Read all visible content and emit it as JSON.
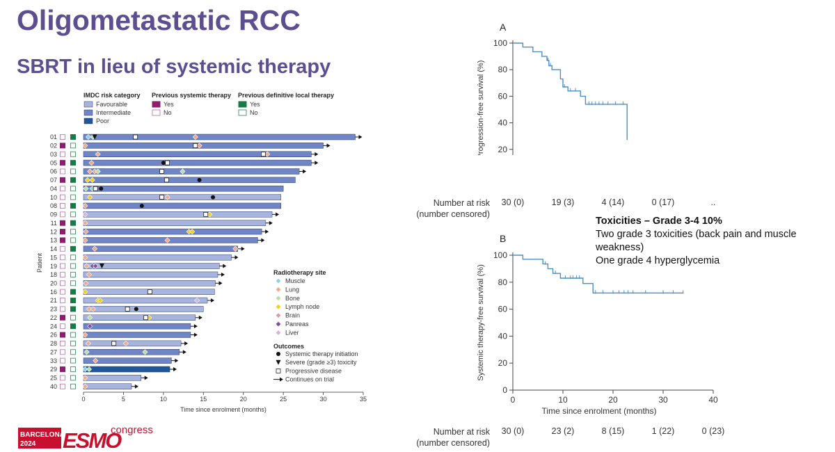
{
  "slide": {
    "title": "Oligometastatic RCC",
    "subtitle": "SBRT in lieu of systemic therapy"
  },
  "toxicities": {
    "heading": "Toxicities – Grade 3-4 10%",
    "line1": "Two grade 3 toxicities (back  pain and muscle weakness)",
    "line2": "One grade 4 hyperglycemia"
  },
  "logo": {
    "city": "BARCELONA",
    "year": "2024",
    "brand": "ESMO",
    "word": "congress"
  },
  "colors": {
    "favourable": "#a7b4de",
    "intermediate": "#6f85c6",
    "poor": "#1f5799",
    "yes_systemic": "#8c1d6f",
    "no_systemic": "#c986bd",
    "yes_local": "#1a7a47",
    "no_local": "#4f9d6d",
    "muscle": "#8fd0e8",
    "lung": "#f2a98a",
    "bone": "#b9dfa2",
    "lymph": "#f3d016",
    "brain": "#e59a9a",
    "panreas": "#7b4f9e",
    "liver": "#d5b5d8",
    "km_line": "#4a8fc7",
    "title": "#5d4f8f"
  },
  "chart_data": [
    {
      "type": "swimmer",
      "xlabel": "Time since enrolment (months)",
      "ylabel": "Patient",
      "xlim": [
        0,
        35
      ],
      "xticks": [
        0,
        5,
        10,
        15,
        20,
        25,
        30,
        35
      ],
      "legend": {
        "risk_title": "IMDC risk category",
        "risk": [
          "Favourable",
          "Intermediate",
          "Poor"
        ],
        "systemic_title": "Previous systemic therapy",
        "systemic": [
          "Yes",
          "No"
        ],
        "local_title": "Previous definitive local therapy",
        "local": [
          "Yes",
          "No"
        ],
        "site_title": "Radiotherapy site",
        "sites": [
          "Muscle",
          "Lung",
          "Bone",
          "Lymph node",
          "Brain",
          "Panreas",
          "Liver"
        ],
        "outcome_title": "Outcomes",
        "outcomes": [
          "Systemic therapy initiation",
          "Severe (grade ≥3) toxicity",
          "Progressive disease",
          "Continues on trial"
        ]
      },
      "patients": [
        {
          "id": "01",
          "sys": false,
          "loc": true,
          "risk": "intermediate",
          "end": 34,
          "cont": true,
          "sites": [
            [
              0.6,
              "muscle"
            ],
            [
              1.2,
              "bone"
            ],
            [
              14,
              "lung"
            ]
          ],
          "pd": 6.5,
          "tox": 1.4
        },
        {
          "id": "02",
          "sys": true,
          "loc": false,
          "risk": "intermediate",
          "end": 30,
          "cont": true,
          "sites": [
            [
              0.2,
              "lung"
            ],
            [
              14.5,
              "lung"
            ]
          ],
          "pd": 14
        },
        {
          "id": "03",
          "sys": false,
          "loc": false,
          "risk": "intermediate",
          "end": 28.5,
          "cont": true,
          "sites": [
            [
              1.8,
              "lung"
            ],
            [
              23,
              "lung"
            ]
          ],
          "pd": 22.5
        },
        {
          "id": "05",
          "sys": true,
          "loc": true,
          "risk": "intermediate",
          "end": 28.5,
          "cont": true,
          "sites": [
            [
              1,
              "lung"
            ]
          ],
          "st": 10,
          "pd": 10.5
        },
        {
          "id": "06",
          "sys": false,
          "loc": false,
          "risk": "intermediate",
          "end": 27,
          "cont": true,
          "sites": [
            [
              0.8,
              "lung"
            ],
            [
              1.4,
              "lung"
            ],
            [
              1.8,
              "bone"
            ],
            [
              12.4,
              "bone"
            ]
          ],
          "pd": 9.8
        },
        {
          "id": "07",
          "sys": true,
          "loc": true,
          "risk": "intermediate",
          "end": 26.5,
          "cont": false,
          "sites": [
            [
              0.5,
              "lymph"
            ],
            [
              1.1,
              "lymph"
            ]
          ],
          "st": 14.5,
          "pd": 10.4
        },
        {
          "id": "04",
          "sys": false,
          "loc": false,
          "risk": "intermediate",
          "end": 25,
          "cont": false,
          "sites": [
            [
              0.3,
              "bone"
            ],
            [
              1.1,
              "muscle"
            ]
          ],
          "pd": 1.5,
          "st": 2.2
        },
        {
          "id": "10",
          "sys": false,
          "loc": false,
          "risk": "favourable",
          "end": 24.7,
          "cont": false,
          "sites": [
            [
              0.8,
              "lymph"
            ],
            [
              10.5,
              "lung"
            ]
          ],
          "pd": 9.8,
          "st": 16.2
        },
        {
          "id": "08",
          "sys": false,
          "loc": true,
          "risk": "intermediate",
          "end": 24.7,
          "cont": false,
          "sites": [
            [
              0.2,
              "lung"
            ]
          ],
          "st": 7.3
        },
        {
          "id": "09",
          "sys": false,
          "loc": false,
          "risk": "favourable",
          "end": 23.6,
          "cont": true,
          "sites": [
            [
              0.2,
              "liver"
            ],
            [
              15.8,
              "lymph"
            ]
          ],
          "pd": 15.3
        },
        {
          "id": "11",
          "sys": true,
          "loc": true,
          "risk": "favourable",
          "end": 22.8,
          "cont": true,
          "sites": [
            [
              0.2,
              "lung"
            ]
          ]
        },
        {
          "id": "12",
          "sys": true,
          "loc": false,
          "risk": "intermediate",
          "end": 22.3,
          "cont": true,
          "sites": [
            [
              0.3,
              "lung"
            ],
            [
              13.2,
              "lymph"
            ],
            [
              13.6,
              "lymph"
            ]
          ]
        },
        {
          "id": "13",
          "sys": true,
          "loc": false,
          "risk": "intermediate",
          "end": 21.8,
          "cont": true,
          "sites": [
            [
              0.2,
              "lung"
            ],
            [
              10.5,
              "lung"
            ]
          ]
        },
        {
          "id": "14",
          "sys": false,
          "loc": true,
          "risk": "intermediate",
          "end": 19.3,
          "cont": true,
          "sites": [
            [
              1.4,
              "lung"
            ],
            [
              19,
              "lung"
            ]
          ]
        },
        {
          "id": "15",
          "sys": false,
          "loc": false,
          "risk": "favourable",
          "end": 18.5,
          "cont": true,
          "sites": [
            [
              0.2,
              "lung"
            ]
          ]
        },
        {
          "id": "19",
          "sys": false,
          "loc": false,
          "risk": "favourable",
          "end": 17,
          "cont": true,
          "sites": [
            [
              0.4,
              "lung"
            ],
            [
              1.1,
              "panreas"
            ],
            [
              1.5,
              "panreas"
            ]
          ],
          "tox": 2.3
        },
        {
          "id": "18",
          "sys": false,
          "loc": false,
          "risk": "favourable",
          "end": 16.8,
          "cont": true,
          "sites": [
            [
              0.7,
              "lung"
            ]
          ]
        },
        {
          "id": "20",
          "sys": false,
          "loc": false,
          "risk": "favourable",
          "end": 16.5,
          "cont": true,
          "sites": [
            [
              0.3,
              "lung"
            ]
          ]
        },
        {
          "id": "16",
          "sys": false,
          "loc": true,
          "risk": "favourable",
          "end": 16.4,
          "cont": false,
          "sites": [
            [
              0.2,
              "lymph"
            ]
          ],
          "pd": 8.3
        },
        {
          "id": "21",
          "sys": false,
          "loc": true,
          "risk": "favourable",
          "end": 15.5,
          "cont": true,
          "sites": [
            [
              1.8,
              "lymph"
            ],
            [
              2.1,
              "lymph"
            ],
            [
              14.2,
              "liver"
            ]
          ]
        },
        {
          "id": "23",
          "sys": false,
          "loc": true,
          "risk": "favourable",
          "end": 15,
          "cont": false,
          "sites": [
            [
              0.7,
              "lung"
            ],
            [
              1.2,
              "lung"
            ]
          ],
          "pd": 5.5,
          "st": 6.6
        },
        {
          "id": "22",
          "sys": true,
          "loc": false,
          "risk": "favourable",
          "end": 14,
          "cont": true,
          "sites": [
            [
              0.8,
              "bone"
            ],
            [
              8.2,
              "lymph"
            ]
          ],
          "pd": 7.8
        },
        {
          "id": "24",
          "sys": false,
          "loc": true,
          "risk": "intermediate",
          "end": 13.4,
          "cont": true,
          "sites": [
            [
              0.8,
              "panreas"
            ]
          ]
        },
        {
          "id": "26",
          "sys": true,
          "loc": false,
          "risk": "intermediate",
          "end": 13.4,
          "cont": true,
          "sites": [
            [
              0.2,
              "lung"
            ]
          ]
        },
        {
          "id": "28",
          "sys": false,
          "loc": false,
          "risk": "favourable",
          "end": 12.2,
          "cont": true,
          "sites": [
            [
              0.6,
              "lung"
            ],
            [
              5.3,
              "lung"
            ]
          ],
          "pd": 3.8
        },
        {
          "id": "27",
          "sys": false,
          "loc": false,
          "risk": "intermediate",
          "end": 12,
          "cont": true,
          "sites": [
            [
              0.4,
              "bone"
            ],
            [
              7.7,
              "bone"
            ]
          ]
        },
        {
          "id": "33",
          "sys": false,
          "loc": false,
          "risk": "intermediate",
          "end": 11,
          "cont": true,
          "sites": [
            [
              1.5,
              "lung"
            ]
          ]
        },
        {
          "id": "29",
          "sys": true,
          "loc": false,
          "risk": "poor",
          "end": 10.8,
          "cont": true,
          "sites": [
            [
              0.2,
              "muscle"
            ],
            [
              0.7,
              "bone"
            ]
          ]
        },
        {
          "id": "25",
          "sys": false,
          "loc": false,
          "risk": "favourable",
          "end": 7.2,
          "cont": true,
          "sites": [
            [
              0.2,
              "lung"
            ]
          ]
        },
        {
          "id": "40",
          "sys": false,
          "loc": false,
          "risk": "favourable",
          "end": 6,
          "cont": true,
          "sites": [
            [
              0.2,
              "lung"
            ]
          ]
        }
      ]
    },
    {
      "type": "line",
      "panel": "A",
      "ylabel": "Progression-free survival (%)",
      "xlim": [
        0,
        40
      ],
      "ylim": [
        0,
        100
      ],
      "xticks": [
        0,
        10,
        20,
        30,
        40
      ],
      "yticks": [
        0,
        20,
        40,
        60,
        80,
        100
      ],
      "steps": [
        [
          0,
          100
        ],
        [
          2,
          100
        ],
        [
          2,
          97
        ],
        [
          4,
          97
        ],
        [
          4,
          93.5
        ],
        [
          5.8,
          93.5
        ],
        [
          5.8,
          90
        ],
        [
          6.8,
          90
        ],
        [
          6.8,
          87
        ],
        [
          7.2,
          87
        ],
        [
          7.2,
          83
        ],
        [
          7.8,
          83
        ],
        [
          7.8,
          80
        ],
        [
          9.5,
          80
        ],
        [
          9.5,
          73
        ],
        [
          10,
          73
        ],
        [
          10,
          67
        ],
        [
          11,
          67
        ],
        [
          11,
          64
        ],
        [
          13.5,
          64
        ],
        [
          13.5,
          60
        ],
        [
          14.5,
          60
        ],
        [
          14.5,
          54
        ],
        [
          22.8,
          54
        ],
        [
          22.8,
          27
        ]
      ],
      "censors": [
        [
          7,
          87
        ],
        [
          7.5,
          83
        ],
        [
          10.3,
          67
        ],
        [
          11.5,
          64
        ],
        [
          12.5,
          64
        ],
        [
          15.2,
          54
        ],
        [
          15.8,
          54
        ],
        [
          16.5,
          54
        ],
        [
          17.2,
          54
        ],
        [
          18,
          54
        ],
        [
          19,
          54
        ],
        [
          20.5,
          54
        ],
        [
          22,
          54
        ]
      ],
      "risk_label": "Number at risk",
      "risk_label2": "(number censored)",
      "risk": [
        "30 (0)",
        "19 (3)",
        "4 (14)",
        "0 (17)",
        ".."
      ]
    },
    {
      "type": "line",
      "panel": "B",
      "xlabel": "Time since enrolment (months)",
      "ylabel": "Systemic therapy-free survival (%)",
      "xlim": [
        0,
        40
      ],
      "ylim": [
        0,
        100
      ],
      "xticks": [
        0,
        10,
        20,
        30,
        40
      ],
      "yticks": [
        0,
        20,
        40,
        60,
        80,
        100
      ],
      "steps": [
        [
          0,
          100
        ],
        [
          2,
          100
        ],
        [
          2,
          97
        ],
        [
          6,
          97
        ],
        [
          6,
          93.5
        ],
        [
          7,
          93.5
        ],
        [
          7,
          90
        ],
        [
          8,
          90
        ],
        [
          8,
          86.5
        ],
        [
          9.5,
          86.5
        ],
        [
          9.5,
          83
        ],
        [
          14,
          83
        ],
        [
          14,
          79
        ],
        [
          16,
          79
        ],
        [
          16,
          72
        ],
        [
          34,
          72
        ]
      ],
      "censors": [
        [
          6.5,
          93.5
        ],
        [
          8.5,
          86.5
        ],
        [
          10.5,
          83
        ],
        [
          11.5,
          83
        ],
        [
          12,
          83
        ],
        [
          12.7,
          83
        ],
        [
          13.3,
          83
        ],
        [
          16.5,
          72
        ],
        [
          18,
          72
        ],
        [
          20,
          72
        ],
        [
          21.2,
          72
        ],
        [
          22.2,
          72
        ],
        [
          23,
          72
        ],
        [
          24,
          72
        ],
        [
          26.5,
          72
        ],
        [
          30,
          72
        ],
        [
          32,
          72
        ],
        [
          34,
          72
        ]
      ],
      "risk_label": "Number at risk",
      "risk_label2": "(number censored)",
      "risk": [
        "30 (0)",
        "23 (2)",
        "8 (15)",
        "1 (22)",
        "0 (23)"
      ]
    }
  ]
}
